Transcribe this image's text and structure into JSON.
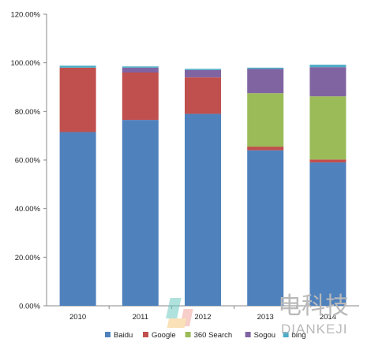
{
  "chart_data": {
    "type": "bar",
    "stacked": true,
    "categories": [
      "2010",
      "2011",
      "2012",
      "2013",
      "2014"
    ],
    "series": [
      {
        "name": "Baidu",
        "color": "#4f81bd",
        "values": [
          0.715,
          0.765,
          0.79,
          0.64,
          0.59
        ]
      },
      {
        "name": "Google",
        "color": "#c0504d",
        "values": [
          0.265,
          0.195,
          0.15,
          0.015,
          0.012
        ]
      },
      {
        "name": "360 Search",
        "color": "#9bbb59",
        "values": [
          0.0,
          0.0,
          0.0,
          0.22,
          0.26
        ]
      },
      {
        "name": "Sogou",
        "color": "#8064a2",
        "values": [
          0.0,
          0.02,
          0.03,
          0.1,
          0.12
        ]
      },
      {
        "name": "bing",
        "color": "#4bacc6",
        "values": [
          0.008,
          0.005,
          0.005,
          0.005,
          0.01
        ]
      }
    ],
    "ylim": [
      0,
      1.2
    ],
    "yticks": [
      "0.00%",
      "20.00%",
      "40.00%",
      "60.00%",
      "80.00%",
      "100.00%",
      "120.00%"
    ],
    "legend_position": "bottom",
    "grid": false,
    "title": "",
    "xlabel": "",
    "ylabel": ""
  },
  "watermark": {
    "chinese": "电科技",
    "latin": "DIANKEJI"
  }
}
